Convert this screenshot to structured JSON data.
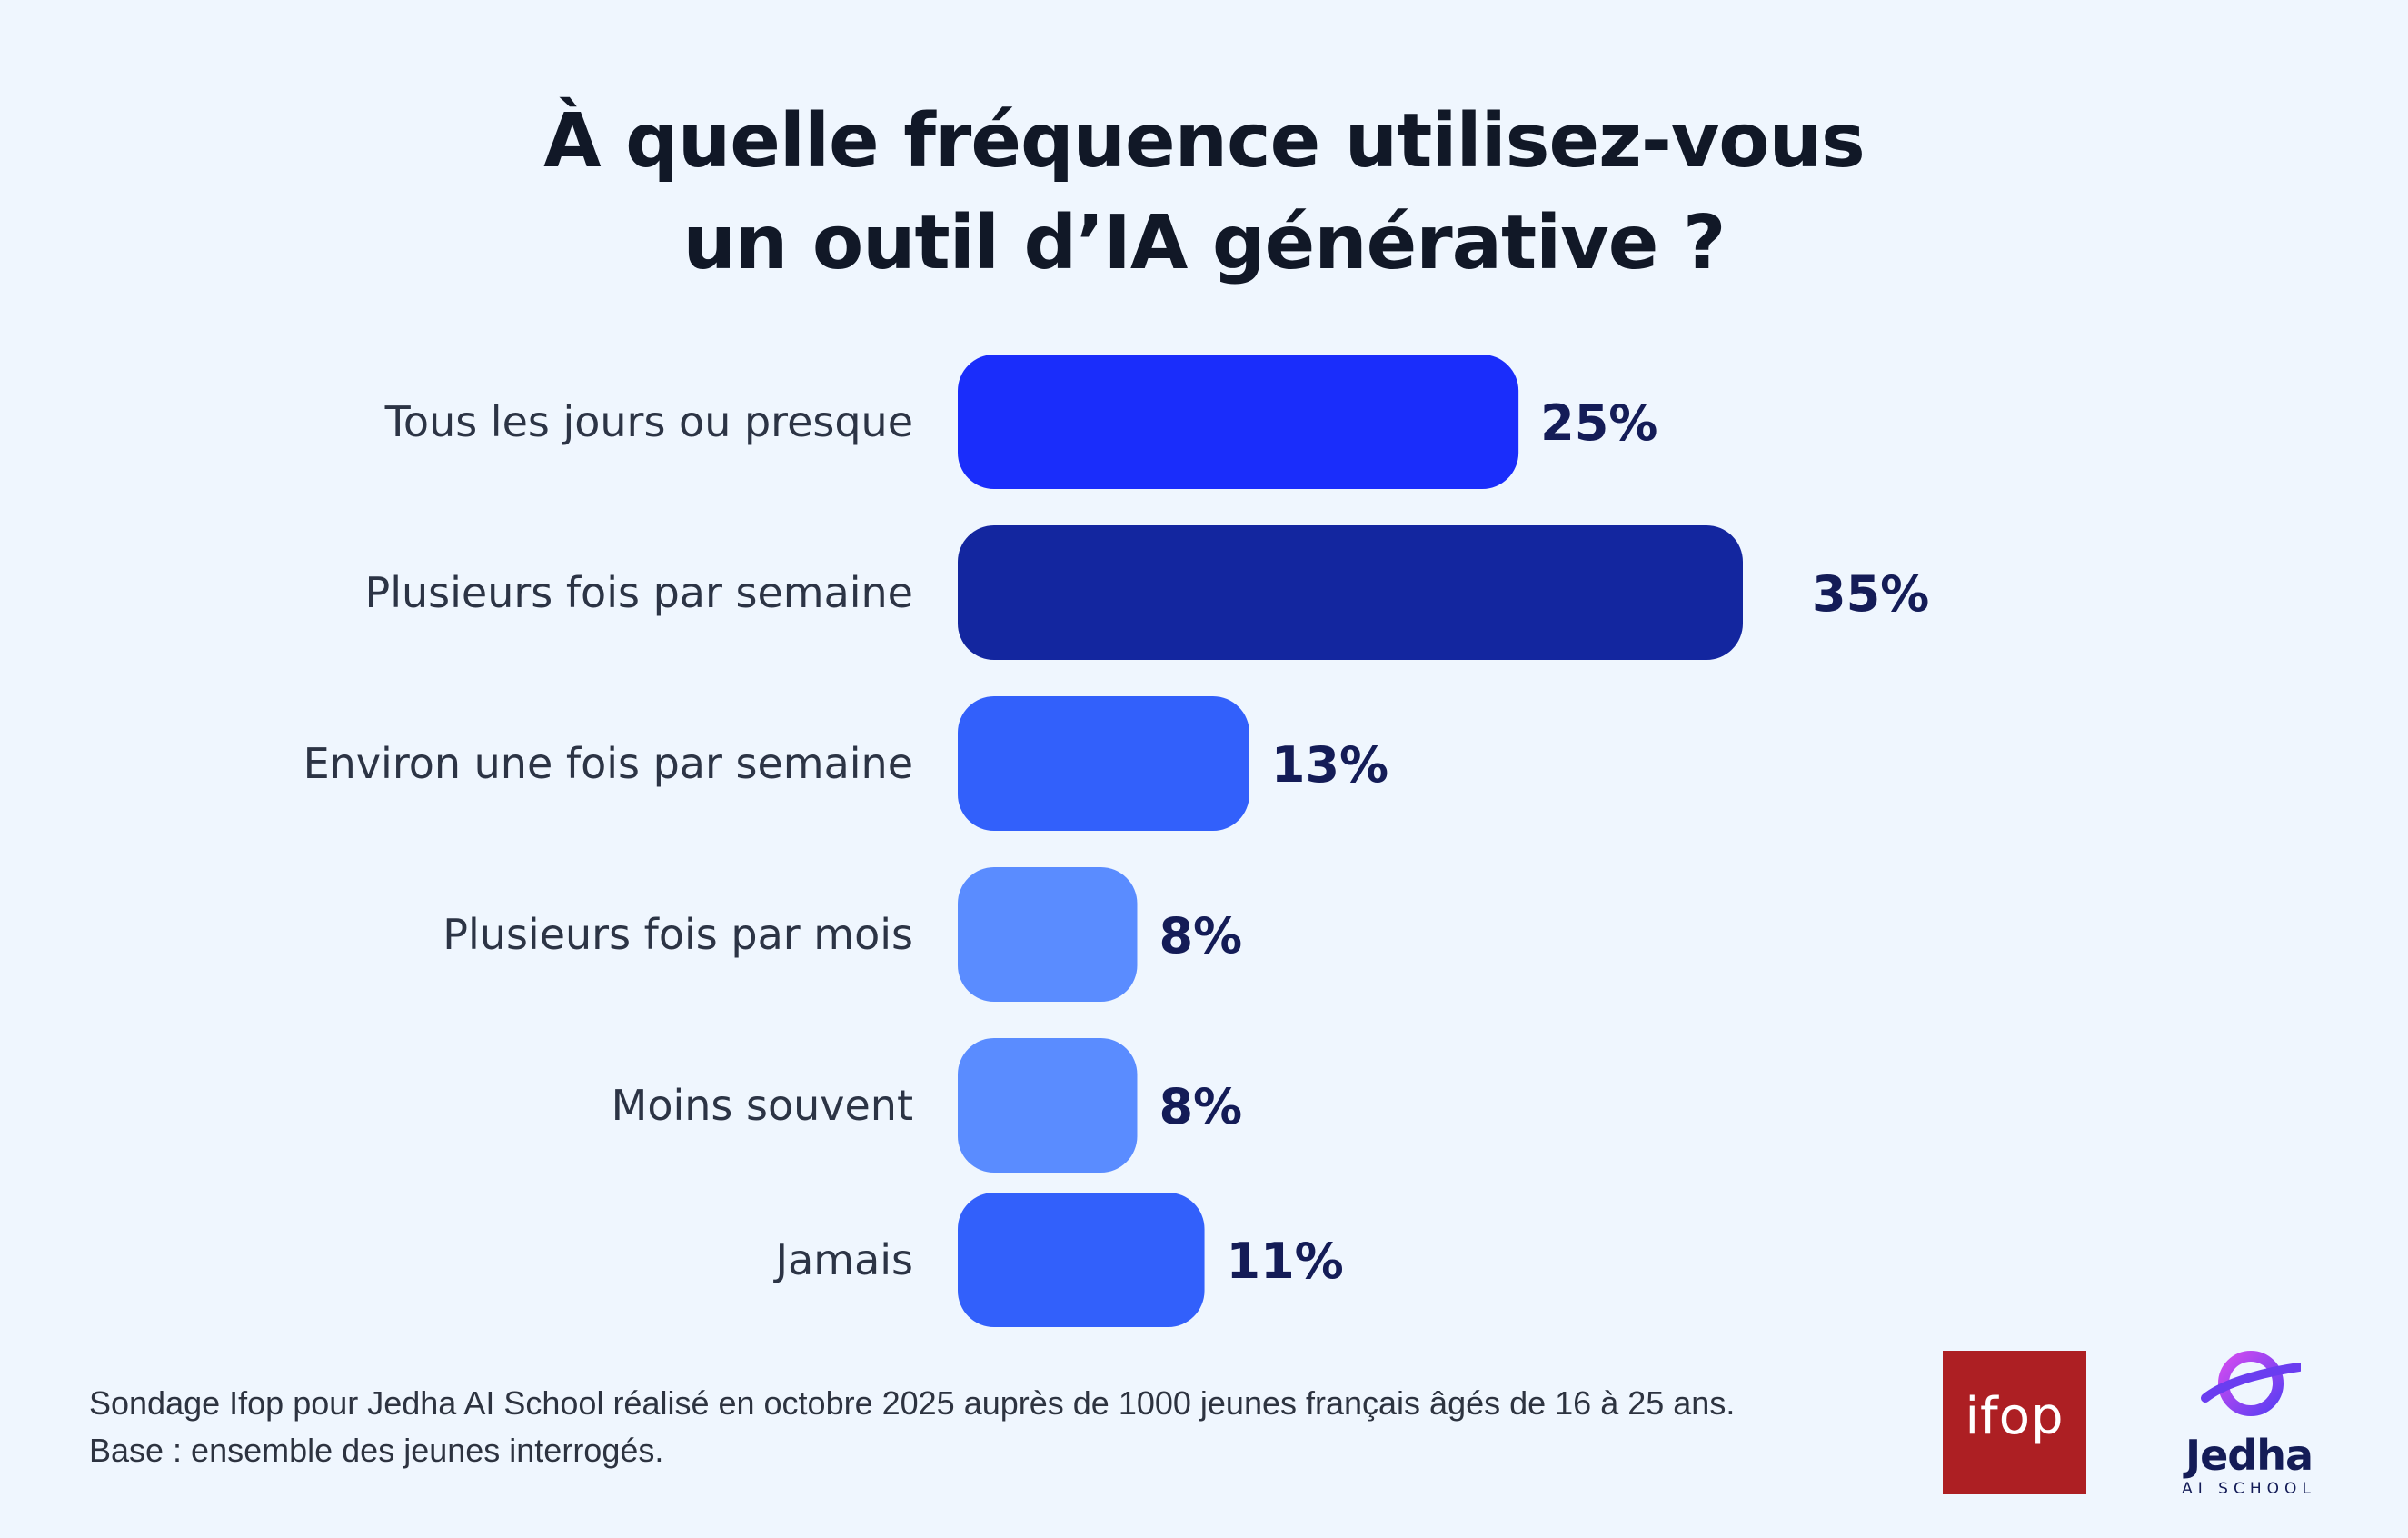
{
  "chart_data": {
    "type": "bar",
    "orientation": "horizontal",
    "title_lines": [
      "À quelle fréquence utilisez-vous",
      "un outil d’IA générative ?"
    ],
    "categories": [
      "Tous les jours ou presque",
      "Plusieurs fois par semaine",
      "Environ une fois par semaine",
      "Plusieurs fois par mois",
      "Moins souvent",
      "Jamais"
    ],
    "values": [
      25,
      35,
      13,
      8,
      8,
      11
    ],
    "value_labels": [
      "25%",
      "35%",
      "13%",
      "8%",
      "8%",
      "11%"
    ],
    "bar_colors": [
      "#1a2dfb",
      "#13269f",
      "#3260fb",
      "#5a8cff",
      "#5a8cff",
      "#3260fb"
    ],
    "unit": "%",
    "xlim": [
      0,
      35
    ],
    "grid": false,
    "legend": "none"
  },
  "footnote": {
    "line1": "Sondage Ifop pour Jedha AI School réalisé en octobre 2025 auprès de 1000 jeunes français âgés de 16 à 25 ans.",
    "line2": "Base : ensemble des jeunes interrogés."
  },
  "logos": {
    "ifop": "ifop",
    "jedha_name": "Jedha",
    "jedha_sub": "AI SCHOOL",
    "ifop_color": "#ad1f23",
    "jedha_color": "#7b3ff2"
  }
}
